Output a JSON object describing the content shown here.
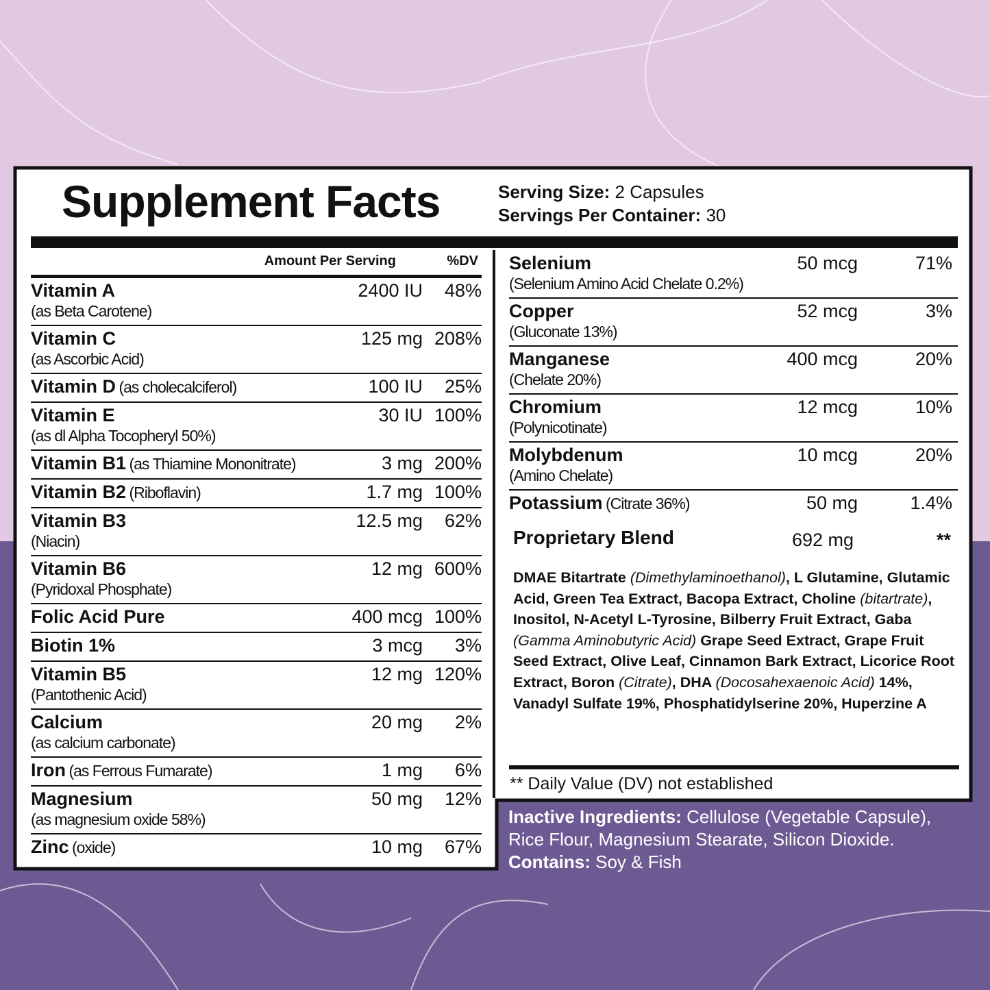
{
  "header": {
    "title": "Supplement Facts",
    "serving_size_label": "Serving Size:",
    "serving_size": "2 Capsules",
    "servings_label": "Servings Per Container:",
    "servings": "30"
  },
  "left_table": {
    "columns": [
      "Amount Per Serving",
      "%DV"
    ],
    "rows": [
      {
        "name": "Vitamin A",
        "detail": "(as Beta Carotene)",
        "amount": "2400 IU",
        "dv": "48%"
      },
      {
        "name": "Vitamin C",
        "detail": "(as Ascorbic Acid)",
        "amount": "125 mg",
        "dv": "208%"
      },
      {
        "name": "Vitamin D",
        "note": "(as cholecalciferol)",
        "amount": "100 IU",
        "dv": "25%"
      },
      {
        "name": "Vitamin E",
        "detail": "(as dl Alpha Tocopheryl 50%)",
        "amount": "30 IU",
        "dv": "100%"
      },
      {
        "name": "Vitamin B1",
        "note": "(as Thiamine Mononitrate)",
        "amount": "3 mg",
        "dv": "200%"
      },
      {
        "name": "Vitamin B2",
        "note": "(Riboflavin)",
        "amount": "1.7 mg",
        "dv": "100%"
      },
      {
        "name": "Vitamin B3",
        "detail": "(Niacin)",
        "amount": "12.5 mg",
        "dv": "62%"
      },
      {
        "name": "Vitamin B6",
        "detail": "(Pyridoxal Phosphate)",
        "amount": "12 mg",
        "dv": "600%"
      },
      {
        "name": "Folic Acid Pure",
        "amount": "400 mcg",
        "dv": "100%"
      },
      {
        "name": "Biotin 1%",
        "amount": "3 mcg",
        "dv": "3%"
      },
      {
        "name": "Vitamin B5",
        "detail": "(Pantothenic Acid)",
        "amount": "12 mg",
        "dv": "120%"
      },
      {
        "name": "Calcium",
        "detail": "(as calcium carbonate)",
        "amount": "20 mg",
        "dv": "2%"
      },
      {
        "name": "Iron",
        "note": "(as Ferrous Fumarate)",
        "amount": "1 mg",
        "dv": "6%"
      },
      {
        "name": "Magnesium",
        "detail": "(as magnesium oxide 58%)",
        "amount": "50 mg",
        "dv": "12%"
      },
      {
        "name": "Zinc",
        "note": "(oxide)",
        "amount": "10 mg",
        "dv": "67%"
      }
    ]
  },
  "right_table": {
    "rows": [
      {
        "name": "Selenium",
        "detail": "(Selenium Amino Acid Chelate 0.2%)",
        "amount": "50 mcg",
        "dv": "71%"
      },
      {
        "name": "Copper",
        "detail": "(Gluconate 13%)",
        "amount": "52 mcg",
        "dv": "3%"
      },
      {
        "name": "Manganese",
        "detail": "(Chelate 20%)",
        "amount": "400 mcg",
        "dv": "20%"
      },
      {
        "name": "Chromium",
        "detail": "(Polynicotinate)",
        "amount": "12 mcg",
        "dv": "10%"
      },
      {
        "name": "Molybdenum",
        "detail": "(Amino Chelate)",
        "amount": "10 mcg",
        "dv": "20%"
      },
      {
        "name": "Potassium",
        "note": "(Citrate 36%)",
        "amount": "50 mg",
        "dv": "1.4%"
      }
    ],
    "blend": {
      "name": "Proprietary Blend",
      "amount": "692 mg",
      "dv": "**",
      "ingredients": [
        {
          "text": "DMAE Bitartrate ",
          "italic": false
        },
        {
          "text": "(Dimethylaminoethanol)",
          "italic": true
        },
        {
          "text": ", L Glutamine, Glutamic Acid, Green Tea Extract, Bacopa Extract, Choline ",
          "italic": false
        },
        {
          "text": "(bitartrate)",
          "italic": true
        },
        {
          "text": ", Inositol, N-Acetyl L-Tyrosine, Bilberry Fruit Extract, Gaba ",
          "italic": false
        },
        {
          "text": "(Gamma Aminobutyric Acid)",
          "italic": true
        },
        {
          "text": " Grape Seed Extract, Grape Fruit Seed Extract, Olive Leaf, Cinnamon Bark Extract, Licorice Root Extract, Boron ",
          "italic": false
        },
        {
          "text": "(Citrate)",
          "italic": true
        },
        {
          "text": ", DHA ",
          "italic": false
        },
        {
          "text": "(Docosahexaenoic Acid)",
          "italic": true
        },
        {
          "text": " 14%, Vanadyl Sulfate 19%, Phosphatidylserine 20%, Huperzine A",
          "italic": false
        }
      ]
    }
  },
  "footnote": "** Daily Value (DV) not established",
  "inactive": {
    "label": "Inactive Ingredients:",
    "text": "Cellulose (Vegetable Capsule), Rice Flour, Magnesium Stearate, Silicon Dioxide.",
    "contains_label": "Contains:",
    "contains": "Soy & Fish"
  }
}
